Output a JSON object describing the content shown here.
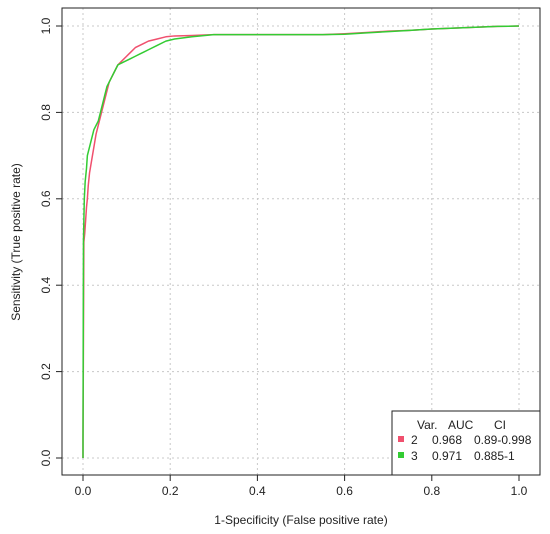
{
  "chart_data": {
    "type": "line",
    "title": "",
    "xlabel": "1-Specificity (False positive rate)",
    "ylabel": "Sensitivity (True positive rate)",
    "xlim": [
      0,
      1
    ],
    "ylim": [
      0,
      1
    ],
    "xticks": [
      "0.0",
      "0.2",
      "0.4",
      "0.6",
      "0.8",
      "1.0"
    ],
    "yticks": [
      "0.0",
      "0.2",
      "0.4",
      "0.6",
      "0.8",
      "1.0"
    ],
    "grid": true,
    "legend": {
      "placement": "bottom-right",
      "header": {
        "var": "Var.",
        "auc": "AUC",
        "ci": "CI"
      },
      "rows": [
        {
          "var": "2",
          "auc": "0.968",
          "ci": "0.89-0.998"
        },
        {
          "var": "3",
          "auc": "0.971",
          "ci": "0.885-1"
        }
      ]
    },
    "series": [
      {
        "name": "2",
        "color": "#f0506e",
        "x": [
          0,
          0,
          0.002,
          0.004,
          0.006,
          0.008,
          0.01,
          0.012,
          0.015,
          0.02,
          0.025,
          0.03,
          0.035,
          0.04,
          0.045,
          0.05,
          0.055,
          0.06,
          0.07,
          0.08,
          0.09,
          0.1,
          0.11,
          0.12,
          0.13,
          0.14,
          0.15,
          0.17,
          0.19,
          0.21,
          0.25,
          0.3,
          0.4,
          0.5,
          0.55,
          0.6,
          0.65,
          0.7,
          0.75,
          0.8,
          0.85,
          0.9,
          0.95,
          1.0
        ],
        "y": [
          0,
          0.04,
          0.5,
          0.52,
          0.55,
          0.58,
          0.6,
          0.63,
          0.66,
          0.69,
          0.72,
          0.75,
          0.77,
          0.79,
          0.81,
          0.83,
          0.85,
          0.87,
          0.89,
          0.91,
          0.92,
          0.93,
          0.94,
          0.95,
          0.955,
          0.96,
          0.965,
          0.97,
          0.975,
          0.977,
          0.978,
          0.98,
          0.98,
          0.98,
          0.98,
          0.982,
          0.985,
          0.988,
          0.99,
          0.993,
          0.995,
          0.997,
          0.999,
          1.0
        ]
      },
      {
        "name": "3",
        "color": "#33cc33",
        "x": [
          0,
          0,
          0.001,
          0.003,
          0.005,
          0.008,
          0.01,
          0.015,
          0.02,
          0.025,
          0.03,
          0.035,
          0.04,
          0.045,
          0.05,
          0.055,
          0.06,
          0.065,
          0.07,
          0.08,
          0.09,
          0.1,
          0.11,
          0.12,
          0.13,
          0.14,
          0.15,
          0.17,
          0.19,
          0.21,
          0.25,
          0.3,
          0.4,
          0.5,
          0.55,
          0.6,
          0.65,
          0.7,
          0.75,
          0.8,
          0.85,
          0.9,
          0.95,
          1.0
        ],
        "y": [
          0,
          0.04,
          0.5,
          0.6,
          0.64,
          0.67,
          0.7,
          0.72,
          0.74,
          0.76,
          0.77,
          0.78,
          0.8,
          0.82,
          0.84,
          0.86,
          0.87,
          0.88,
          0.89,
          0.91,
          0.915,
          0.92,
          0.925,
          0.93,
          0.935,
          0.94,
          0.945,
          0.955,
          0.965,
          0.97,
          0.975,
          0.98,
          0.98,
          0.98,
          0.98,
          0.981,
          0.984,
          0.987,
          0.99,
          0.993,
          0.995,
          0.997,
          0.999,
          1.0
        ]
      }
    ]
  }
}
